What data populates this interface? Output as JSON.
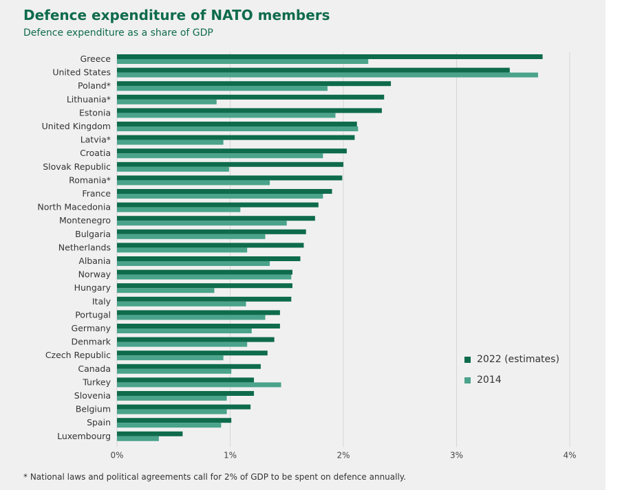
{
  "title": "Defence expenditure of NATO members",
  "subtitle": "Defence expenditure as a share of GDP",
  "footnote": "* National laws and political agreements call for 2% of GDP to be spent on defence annually.",
  "colors": {
    "panel_background": "#f0f0f0",
    "title": "#0e6b4b",
    "series_2022": "#0e6b4b",
    "series_2014": "#4aa38a",
    "gridline": "#d6d6d6"
  },
  "chart_data": {
    "type": "bar",
    "orientation": "horizontal",
    "title": "Defence expenditure of NATO members",
    "subtitle": "Defence expenditure as a share of GDP",
    "unit": "% of GDP",
    "xlim": [
      0,
      4
    ],
    "x_ticks": [
      0,
      1,
      2,
      3,
      4
    ],
    "x_tick_labels": [
      "0%",
      "1%",
      "2%",
      "3%",
      "4%"
    ],
    "grid": "vertical gridlines",
    "legend_position": "bottom-right",
    "categories": [
      "Greece",
      "United States",
      "Poland*",
      "Lithuania*",
      "Estonia",
      "United Kingdom",
      "Latvia*",
      "Croatia",
      "Slovak Republic",
      "Romania*",
      "France",
      "North Macedonia",
      "Montenegro",
      "Bulgaria",
      "Netherlands",
      "Albania",
      "Norway",
      "Hungary",
      "Italy",
      "Portugal",
      "Germany",
      "Denmark",
      "Czech Republic",
      "Canada",
      "Turkey",
      "Slovenia",
      "Belgium",
      "Spain",
      "Luxembourg"
    ],
    "series": [
      {
        "name": "2022 (estimates)",
        "values": [
          3.76,
          3.47,
          2.42,
          2.36,
          2.34,
          2.12,
          2.1,
          2.03,
          2.0,
          1.99,
          1.9,
          1.78,
          1.75,
          1.67,
          1.65,
          1.62,
          1.55,
          1.55,
          1.54,
          1.44,
          1.44,
          1.39,
          1.33,
          1.27,
          1.21,
          1.21,
          1.18,
          1.01,
          0.58
        ]
      },
      {
        "name": "2014",
        "values": [
          2.22,
          3.72,
          1.86,
          0.88,
          1.93,
          2.13,
          0.94,
          1.82,
          0.99,
          1.35,
          1.82,
          1.09,
          1.5,
          1.31,
          1.15,
          1.35,
          1.54,
          0.86,
          1.14,
          1.31,
          1.19,
          1.15,
          0.94,
          1.01,
          1.45,
          0.97,
          0.97,
          0.92,
          0.37
        ]
      }
    ]
  }
}
